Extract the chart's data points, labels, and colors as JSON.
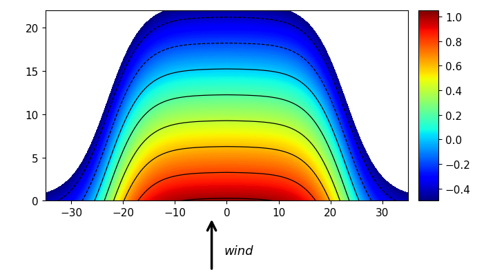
{
  "xlim": [
    -35,
    35
  ],
  "ylim": [
    0,
    22
  ],
  "xticks": [
    -30,
    -20,
    -10,
    0,
    10,
    20,
    30
  ],
  "yticks": [
    0,
    5,
    10,
    15,
    20
  ],
  "colorbar_ticks": [
    -0.4,
    -0.2,
    0,
    0.2,
    0.4,
    0.6,
    0.8,
    1.0
  ],
  "vmin": -0.5,
  "vmax": 1.05,
  "wind_label": "wind",
  "figsize": [
    7.3,
    4.06
  ],
  "dpi": 100
}
